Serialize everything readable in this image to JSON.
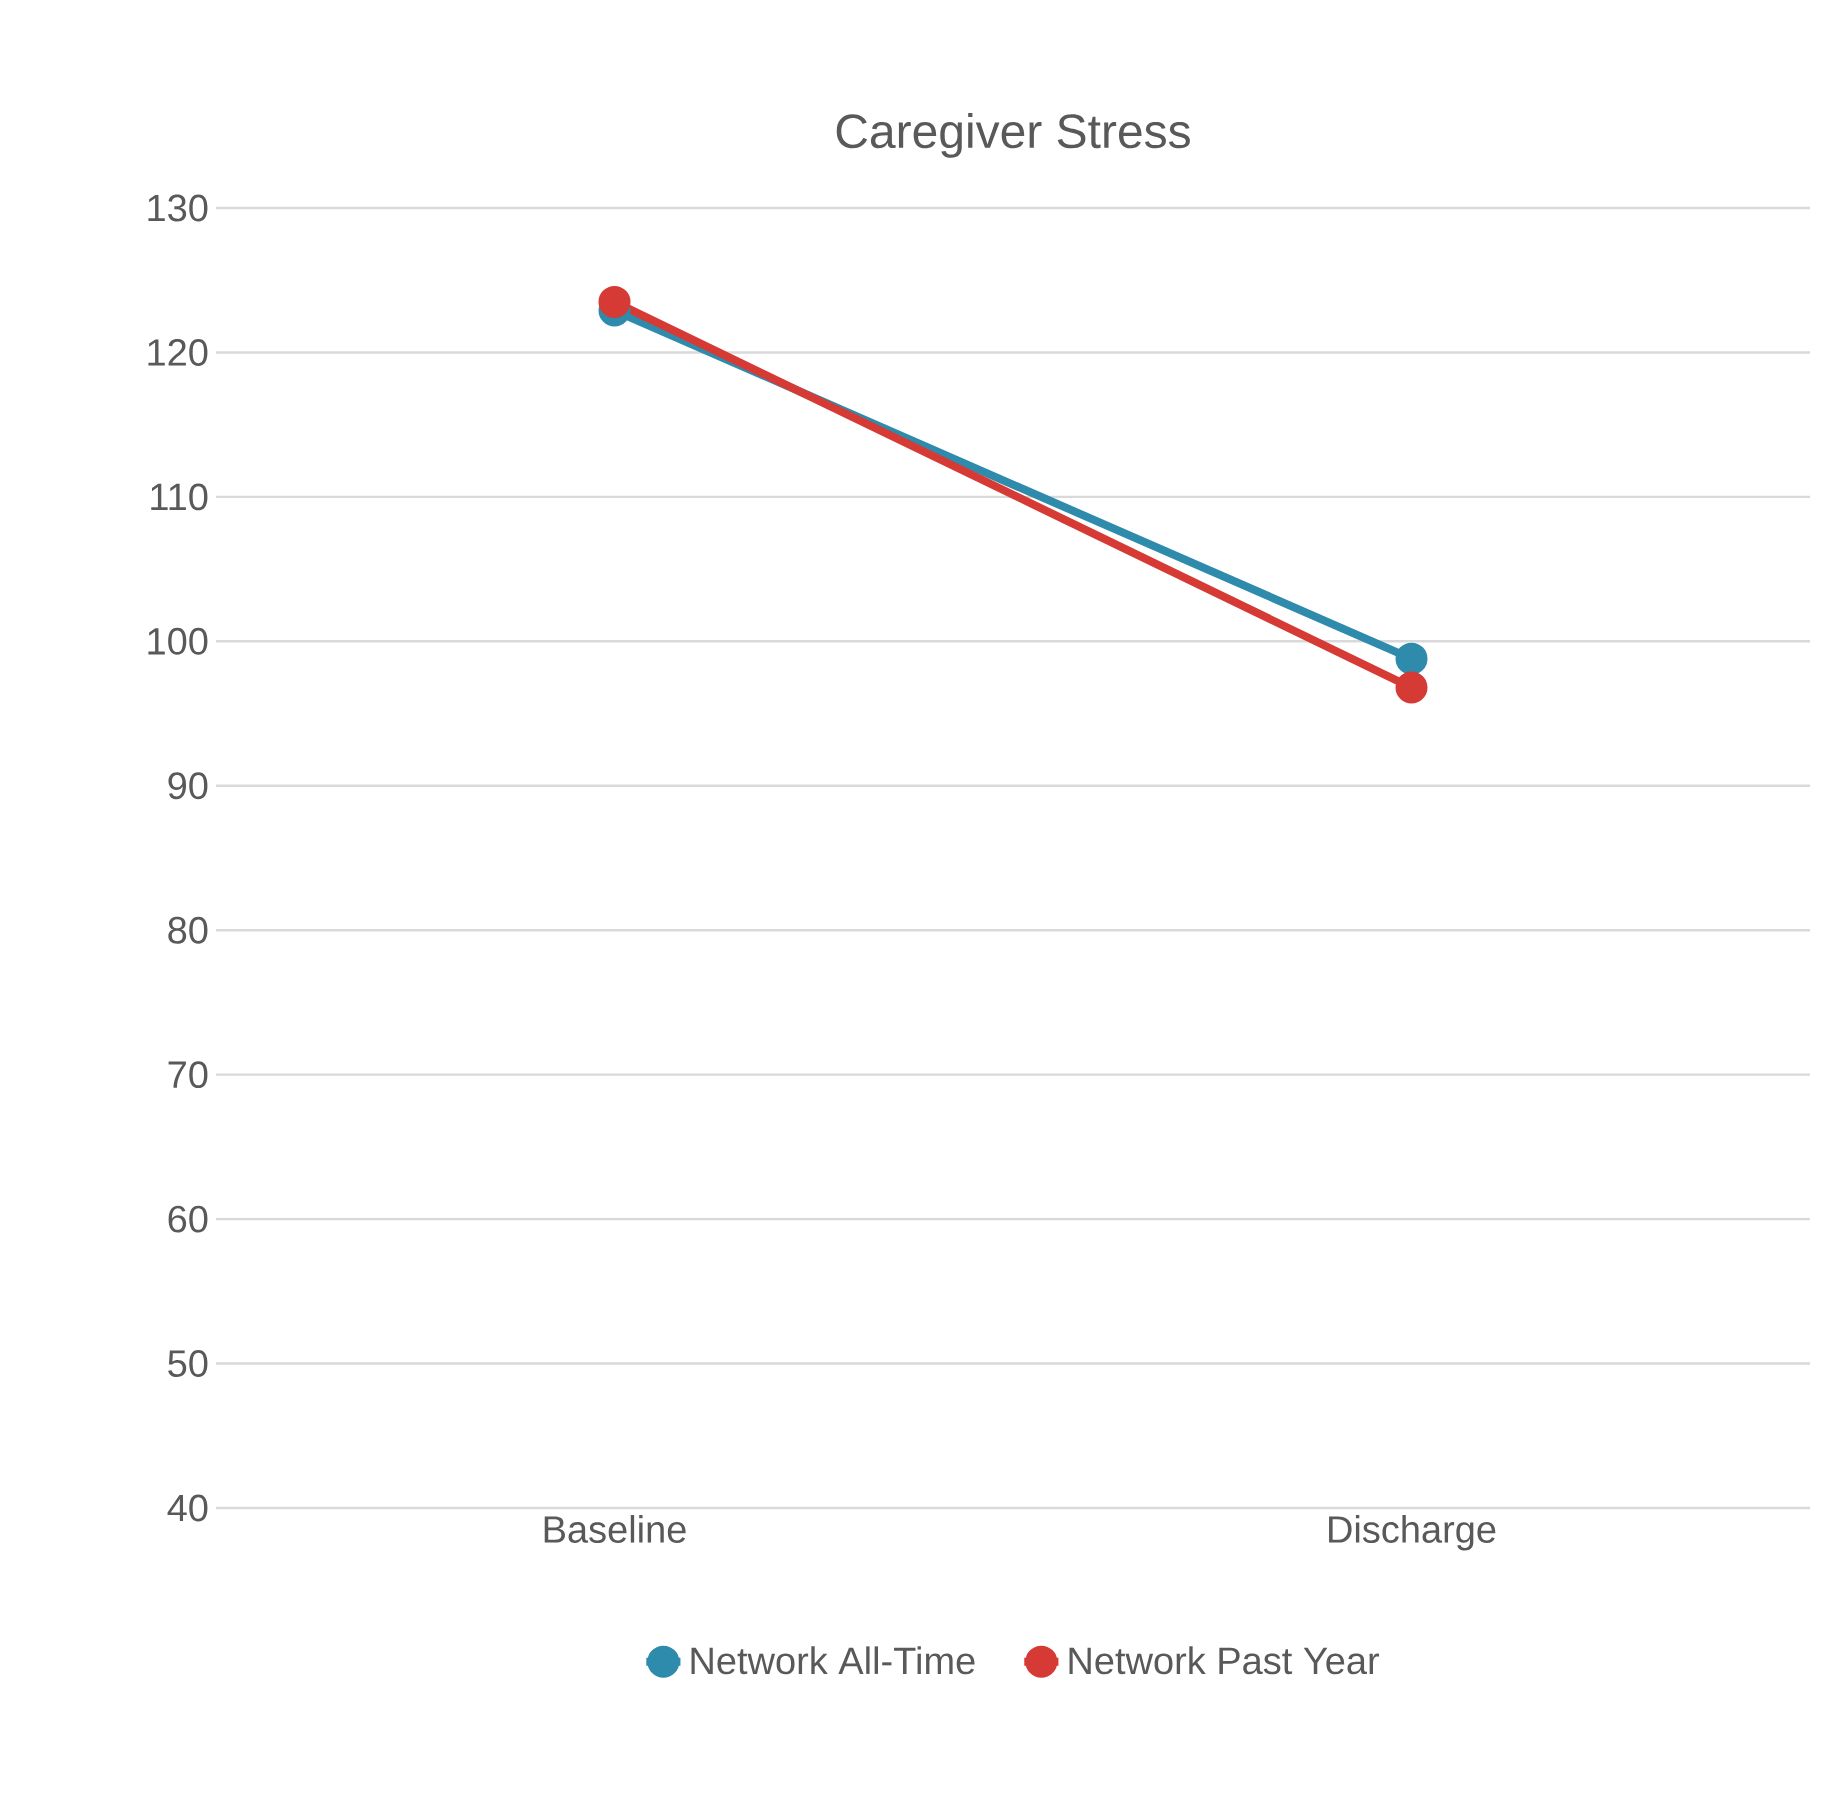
{
  "chart_data": {
    "type": "line",
    "title": "Caregiver Stress",
    "categories": [
      "Baseline",
      "Discharge"
    ],
    "series": [
      {
        "name": "Network All-Time",
        "color": "#2e8bab",
        "values": [
          122.9,
          98.8
        ]
      },
      {
        "name": "Network Past Year",
        "color": "#d63a34",
        "values": [
          123.5,
          96.8
        ]
      }
    ],
    "ylim": [
      40,
      130
    ],
    "yticks": [
      40,
      50,
      60,
      70,
      80,
      90,
      100,
      110,
      120,
      130
    ],
    "grid": "y",
    "legend": "bottom",
    "marker": "circle",
    "line_style": "solid"
  }
}
